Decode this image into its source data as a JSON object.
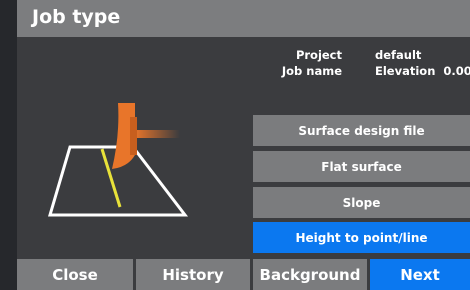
{
  "header": {
    "title": "Job type"
  },
  "info": {
    "rows": [
      [
        "Project",
        "default"
      ],
      [
        "Job name",
        "Elevation  0.00"
      ]
    ]
  },
  "options": [
    "Surface design file",
    "Flat surface",
    "Slope",
    "Height to point/line"
  ],
  "footer": [
    "Close",
    "History",
    "Background",
    "Next"
  ]
}
